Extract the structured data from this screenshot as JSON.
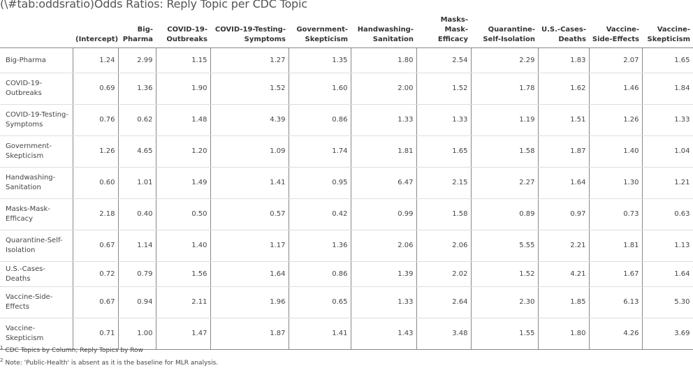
{
  "caption": "(\\#tab:oddsratio)Odds Ratios: Reply Topic per CDC Topic",
  "columns": [
    {
      "l1": "",
      "l2": ""
    },
    {
      "l1": "",
      "l2": "(Intercept)"
    },
    {
      "l1": "Big-",
      "l2": "Pharma"
    },
    {
      "l1": "COVID-19-",
      "l2": "Outbreaks"
    },
    {
      "l1": "COVID-19-Testing-",
      "l2": "Symptoms"
    },
    {
      "l1": "Government-",
      "l2": "Skepticism"
    },
    {
      "l1": "Handwashing-",
      "l2": "Sanitation"
    },
    {
      "l1": "Masks-Mask-",
      "l2": "Efficacy"
    },
    {
      "l1": "Quarantine-",
      "l2": "Self-Isolation"
    },
    {
      "l1": "U.S.-Cases-",
      "l2": "Deaths"
    },
    {
      "l1": "Vaccine-",
      "l2": "Side-Effects"
    },
    {
      "l1": "Vaccine-",
      "l2": "Skepticism"
    }
  ],
  "rows": [
    {
      "l1": "Big-Pharma",
      "l2": "",
      "values": [
        "1.24",
        "2.99",
        "1.15",
        "1.27",
        "1.35",
        "1.80",
        "2.54",
        "2.29",
        "1.83",
        "2.07",
        "1.65"
      ]
    },
    {
      "l1": "COVID-19-",
      "l2": "Outbreaks",
      "values": [
        "0.69",
        "1.36",
        "1.90",
        "1.52",
        "1.60",
        "2.00",
        "1.52",
        "1.78",
        "1.62",
        "1.46",
        "1.84"
      ]
    },
    {
      "l1": "COVID-19-Testing-",
      "l2": "Symptoms",
      "values": [
        "0.76",
        "0.62",
        "1.48",
        "4.39",
        "0.86",
        "1.33",
        "1.33",
        "1.19",
        "1.51",
        "1.26",
        "1.33"
      ]
    },
    {
      "l1": "Government-",
      "l2": "Skepticism",
      "values": [
        "1.26",
        "4.65",
        "1.20",
        "1.09",
        "1.74",
        "1.81",
        "1.65",
        "1.58",
        "1.87",
        "1.40",
        "1.04"
      ]
    },
    {
      "l1": "Handwashing-",
      "l2": "Sanitation",
      "values": [
        "0.60",
        "1.01",
        "1.49",
        "1.41",
        "0.95",
        "6.47",
        "2.15",
        "2.27",
        "1.64",
        "1.30",
        "1.21"
      ]
    },
    {
      "l1": "Masks-Mask-",
      "l2": "Efficacy",
      "values": [
        "2.18",
        "0.40",
        "0.50",
        "0.57",
        "0.42",
        "0.99",
        "1.58",
        "0.89",
        "0.97",
        "0.73",
        "0.63"
      ]
    },
    {
      "l1": "Quarantine-Self-",
      "l2": "Isolation",
      "values": [
        "0.67",
        "1.14",
        "1.40",
        "1.17",
        "1.36",
        "2.06",
        "2.06",
        "5.55",
        "2.21",
        "1.81",
        "1.13"
      ]
    },
    {
      "l1": "U.S.-Cases-Deaths",
      "l2": "",
      "values": [
        "0.72",
        "0.79",
        "1.56",
        "1.64",
        "0.86",
        "1.39",
        "2.02",
        "1.52",
        "4.21",
        "1.67",
        "1.64"
      ]
    },
    {
      "l1": "Vaccine-Side-",
      "l2": "Effects",
      "values": [
        "0.67",
        "0.94",
        "2.11",
        "1.96",
        "0.65",
        "1.33",
        "2.64",
        "2.30",
        "1.85",
        "6.13",
        "5.30"
      ]
    },
    {
      "l1": "Vaccine-",
      "l2": "Skepticism",
      "values": [
        "0.71",
        "1.00",
        "1.47",
        "1.87",
        "1.41",
        "1.43",
        "3.48",
        "1.55",
        "1.80",
        "4.26",
        "3.69"
      ]
    }
  ],
  "footnotes": [
    {
      "mark": "1",
      "text": "CDC Topics by Column; Reply Topics by Row"
    },
    {
      "mark": "2",
      "text": "Note: 'Public-Health' is absent as it is the baseline for MLR analysis."
    }
  ]
}
